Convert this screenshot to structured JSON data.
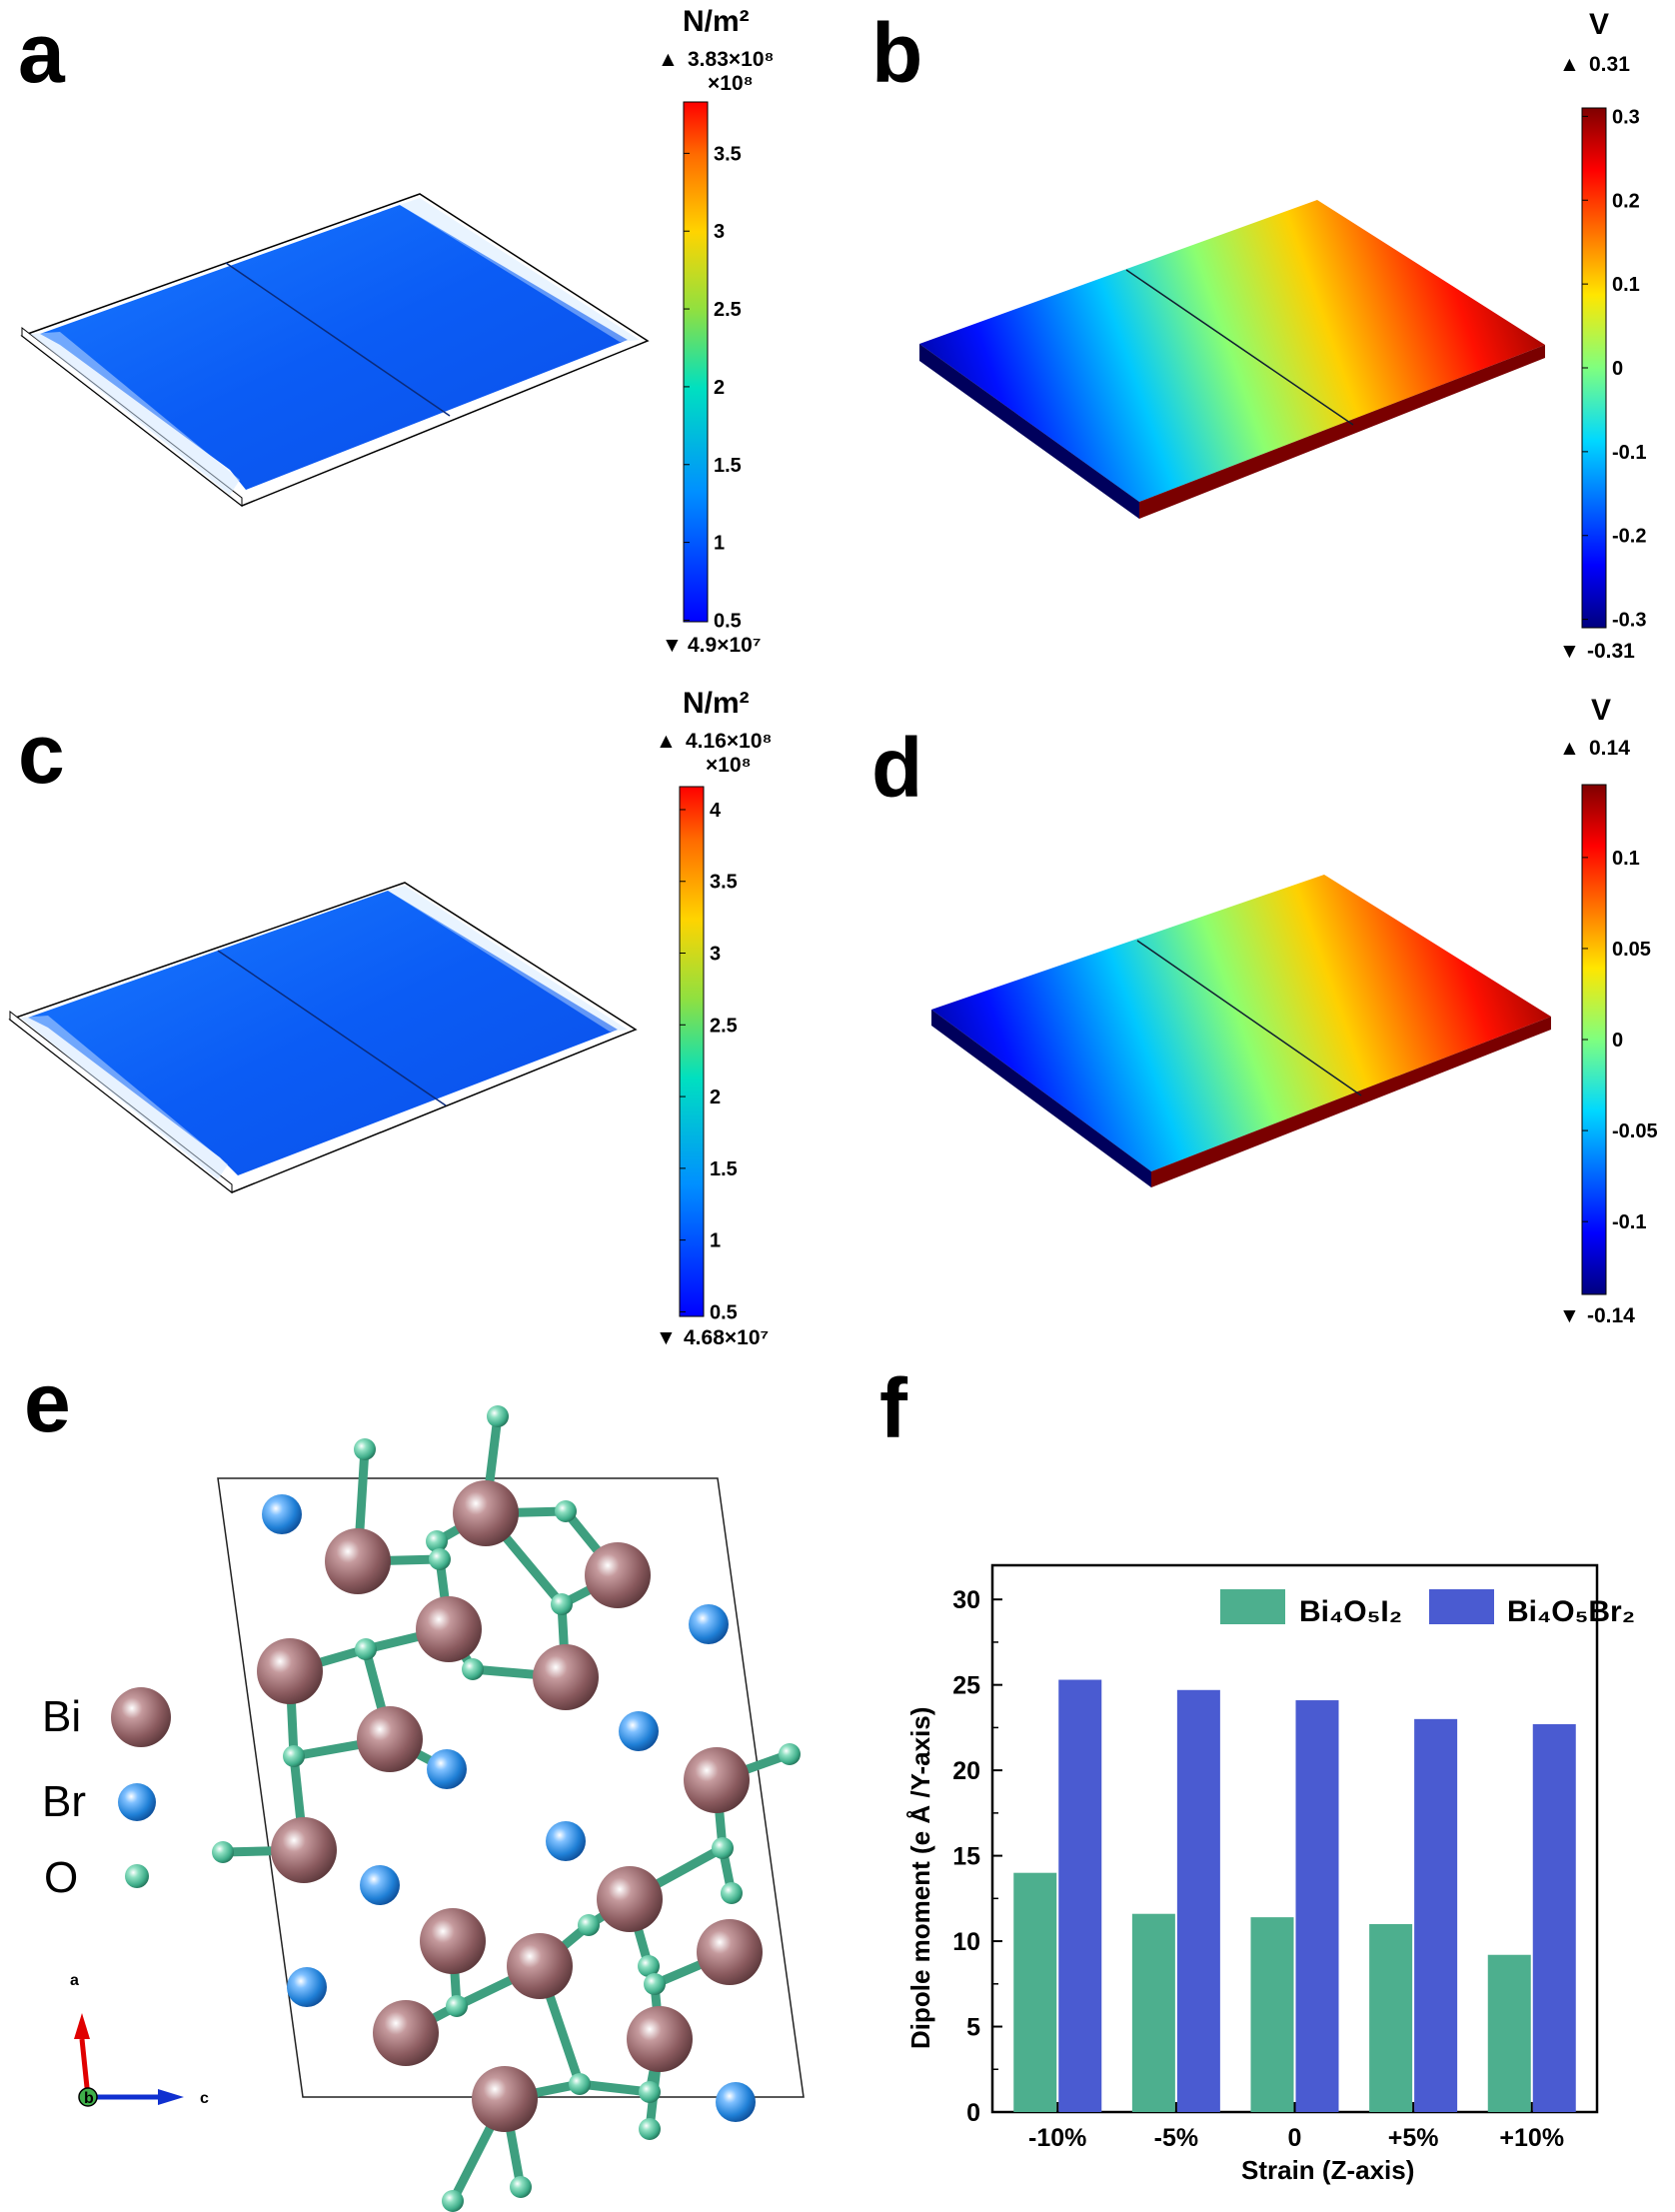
{
  "panels": {
    "a": {
      "letter": "a",
      "unit": "N/m²",
      "max_label": "3.83×10⁸",
      "multiplier": "×10⁸",
      "min_label": "4.9×10⁷",
      "ticks": [
        "3.5",
        "3",
        "2.5",
        "2",
        "1.5",
        "1",
        "0.5"
      ]
    },
    "b": {
      "letter": "b",
      "unit": "V",
      "max_label": "0.31",
      "min_label": "-0.31",
      "ticks": [
        "0.3",
        "0.2",
        "0.1",
        "0",
        "-0.1",
        "-0.2",
        "-0.3"
      ]
    },
    "c": {
      "letter": "c",
      "unit": "N/m²",
      "max_label": "4.16×10⁸",
      "multiplier": "×10⁸",
      "min_label": "4.68×10⁷",
      "ticks": [
        "4",
        "3.5",
        "3",
        "2.5",
        "2",
        "1.5",
        "1",
        "0.5"
      ]
    },
    "d": {
      "letter": "d",
      "unit": "V",
      "max_label": "0.14",
      "min_label": "-0.14",
      "ticks": [
        "0.1",
        "0.05",
        "0",
        "-0.05",
        "-0.1"
      ]
    },
    "e": {
      "letter": "e",
      "legend": [
        "Bi",
        "Br",
        "O"
      ],
      "axis_labels": {
        "a": "a",
        "b": "b",
        "c": "c"
      }
    },
    "f": {
      "letter": "f"
    }
  },
  "colors": {
    "bi": "#8a5a5e",
    "br": "#1f7fd6",
    "o": "#3fae8a",
    "bond": "#3e9f7f",
    "bi4o5i2": "#4daf8e",
    "bi4o5br2": "#4a5bd1"
  },
  "chart_data": {
    "type": "bar",
    "categories": [
      "-10%",
      "-5%",
      "0",
      "+5%",
      "+10%"
    ],
    "series": [
      {
        "name": "Bi₄O₅I₂",
        "values": [
          14.0,
          11.6,
          11.4,
          11.0,
          9.2
        ]
      },
      {
        "name": "Bi₄O₅Br₂",
        "values": [
          25.3,
          24.7,
          24.1,
          23.0,
          22.7
        ]
      }
    ],
    "xlabel": "Strain (Z-axis)",
    "ylabel": "Dipole moment (e Å /Y-axis)",
    "ylim": [
      0,
      32
    ],
    "yticks": [
      0,
      5,
      10,
      15,
      20,
      25,
      30
    ],
    "legend_position": "top-right"
  }
}
